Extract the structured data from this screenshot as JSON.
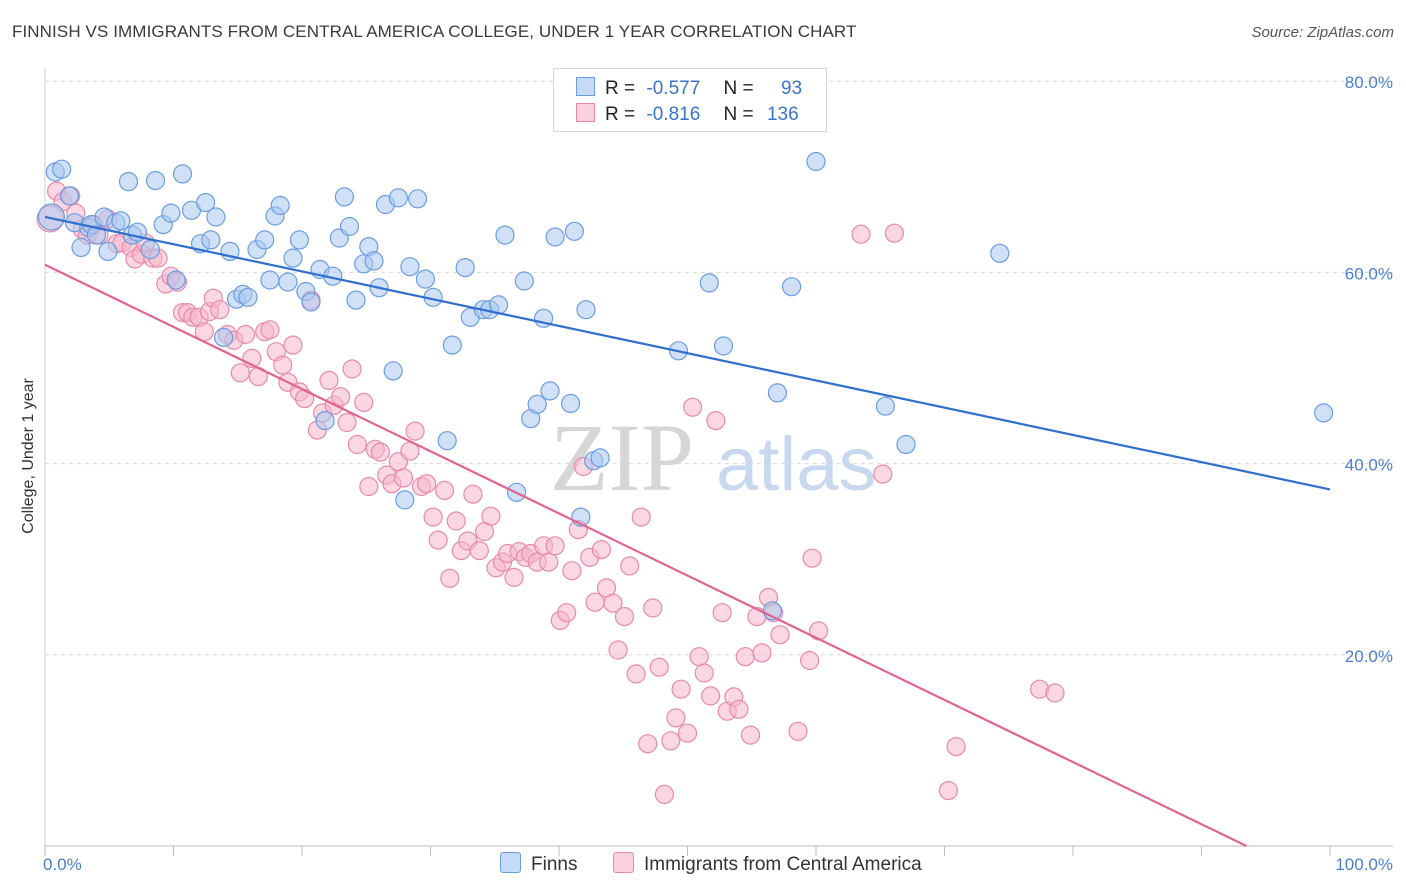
{
  "title": "FINNISH VS IMMIGRANTS FROM CENTRAL AMERICA COLLEGE, UNDER 1 YEAR CORRELATION CHART",
  "source": "Source: ZipAtlas.com",
  "watermark": {
    "zip": "ZIP",
    "atlas": "atlas"
  },
  "legend": {
    "rows": [
      {
        "r_label": "R =",
        "r_value": "-0.577",
        "n_label": "N =",
        "n_value": "93"
      },
      {
        "r_label": "R =",
        "r_value": "-0.816",
        "n_label": "N =",
        "n_value": "136"
      }
    ]
  },
  "bottom_legend": [
    "Finns",
    "Immigrants from Central America"
  ],
  "colors": {
    "blue_fill": "#a9c8f0",
    "blue_stroke": "#6a9de0",
    "blue_line": "#2f6fcf",
    "pink_fill": "#f6b6cb",
    "pink_stroke": "#e88aa9",
    "pink_line": "#e0648f",
    "tick_label": "#4a7fd0",
    "grid": "#d9d9d9"
  },
  "chart_data": {
    "type": "scatter",
    "title": "FINNISH VS IMMIGRANTS FROM CENTRAL AMERICA COLLEGE, UNDER 1 YEAR CORRELATION CHART",
    "xlabel": "",
    "ylabel": "College, Under 1 year",
    "xlim": [
      0,
      100
    ],
    "ylim": [
      0,
      82
    ],
    "x_tick_labels": [
      "0.0%",
      "100.0%"
    ],
    "y_ticks": [
      20,
      40,
      60,
      80
    ],
    "y_tick_labels": [
      "20.0%",
      "40.0%",
      "60.0%",
      "80.0%"
    ],
    "grid": true,
    "legend_position": "top-center",
    "series": [
      {
        "name": "Finns",
        "r": -0.577,
        "n": 93,
        "trend": {
          "x": [
            0,
            100
          ],
          "y": [
            65.8,
            37.3
          ]
        },
        "points": [
          [
            0.5,
            65.8
          ],
          [
            0.8,
            70.5
          ],
          [
            1.3,
            70.8
          ],
          [
            1.9,
            68.0
          ],
          [
            2.3,
            65.2
          ],
          [
            2.8,
            62.6
          ],
          [
            3.4,
            64.7
          ],
          [
            3.6,
            65.0
          ],
          [
            4.0,
            63.9
          ],
          [
            4.6,
            65.8
          ],
          [
            4.9,
            62.2
          ],
          [
            5.5,
            65.2
          ],
          [
            5.9,
            65.4
          ],
          [
            6.5,
            69.5
          ],
          [
            6.8,
            63.9
          ],
          [
            7.2,
            64.2
          ],
          [
            8.2,
            62.4
          ],
          [
            8.6,
            69.6
          ],
          [
            9.2,
            65.0
          ],
          [
            9.8,
            66.2
          ],
          [
            10.2,
            59.2
          ],
          [
            10.7,
            70.3
          ],
          [
            11.4,
            66.5
          ],
          [
            12.1,
            63.0
          ],
          [
            12.5,
            67.3
          ],
          [
            12.9,
            63.4
          ],
          [
            13.3,
            65.8
          ],
          [
            13.9,
            53.2
          ],
          [
            14.4,
            62.2
          ],
          [
            14.9,
            57.2
          ],
          [
            15.4,
            57.7
          ],
          [
            15.8,
            57.4
          ],
          [
            16.5,
            62.4
          ],
          [
            17.1,
            63.4
          ],
          [
            17.5,
            59.2
          ],
          [
            17.9,
            65.9
          ],
          [
            18.3,
            67.0
          ],
          [
            18.9,
            59.0
          ],
          [
            19.3,
            61.5
          ],
          [
            19.8,
            63.4
          ],
          [
            20.3,
            58.0
          ],
          [
            20.7,
            56.9
          ],
          [
            21.4,
            60.3
          ],
          [
            21.8,
            44.5
          ],
          [
            22.4,
            59.6
          ],
          [
            22.9,
            63.6
          ],
          [
            23.3,
            67.9
          ],
          [
            23.7,
            64.8
          ],
          [
            24.2,
            57.1
          ],
          [
            24.8,
            60.9
          ],
          [
            25.2,
            62.7
          ],
          [
            25.6,
            61.2
          ],
          [
            26.0,
            58.4
          ],
          [
            26.5,
            67.1
          ],
          [
            27.1,
            49.7
          ],
          [
            27.5,
            67.8
          ],
          [
            28.0,
            36.2
          ],
          [
            28.4,
            60.6
          ],
          [
            29.0,
            67.7
          ],
          [
            29.6,
            59.3
          ],
          [
            30.2,
            57.4
          ],
          [
            31.3,
            42.4
          ],
          [
            31.7,
            52.4
          ],
          [
            32.7,
            60.5
          ],
          [
            33.1,
            55.3
          ],
          [
            34.1,
            56.1
          ],
          [
            34.6,
            56.1
          ],
          [
            35.3,
            56.6
          ],
          [
            35.8,
            63.9
          ],
          [
            36.7,
            37.0
          ],
          [
            37.3,
            59.1
          ],
          [
            37.8,
            44.7
          ],
          [
            38.3,
            46.2
          ],
          [
            38.8,
            55.2
          ],
          [
            39.3,
            47.6
          ],
          [
            39.7,
            63.7
          ],
          [
            40.9,
            46.3
          ],
          [
            41.2,
            64.3
          ],
          [
            41.7,
            34.4
          ],
          [
            42.1,
            56.1
          ],
          [
            42.7,
            40.3
          ],
          [
            43.2,
            40.6
          ],
          [
            49.3,
            51.8
          ],
          [
            51.7,
            58.9
          ],
          [
            52.8,
            52.3
          ],
          [
            56.6,
            24.6
          ],
          [
            57.0,
            47.4
          ],
          [
            58.1,
            58.5
          ],
          [
            60.0,
            71.6
          ],
          [
            65.4,
            46.0
          ],
          [
            67.0,
            42.0
          ],
          [
            74.3,
            62.0
          ],
          [
            99.5,
            45.3
          ]
        ]
      },
      {
        "name": "Immigrants from Central America",
        "r": -0.816,
        "n": 136,
        "trend": {
          "x": [
            0,
            93.5
          ],
          "y": [
            60.8,
            0.0
          ]
        },
        "points": [
          [
            0.4,
            65.6
          ],
          [
            0.9,
            68.5
          ],
          [
            1.4,
            67.4
          ],
          [
            2.0,
            68.0
          ],
          [
            2.4,
            66.2
          ],
          [
            2.9,
            64.5
          ],
          [
            3.3,
            63.9
          ],
          [
            3.8,
            65.0
          ],
          [
            4.2,
            63.9
          ],
          [
            4.9,
            65.6
          ],
          [
            5.6,
            63.0
          ],
          [
            6.0,
            63.1
          ],
          [
            6.7,
            62.6
          ],
          [
            7.0,
            61.4
          ],
          [
            7.5,
            61.9
          ],
          [
            7.8,
            63.1
          ],
          [
            8.4,
            61.5
          ],
          [
            8.8,
            61.5
          ],
          [
            9.4,
            58.8
          ],
          [
            9.8,
            59.6
          ],
          [
            10.3,
            59.0
          ],
          [
            10.7,
            55.8
          ],
          [
            11.1,
            55.8
          ],
          [
            11.5,
            55.3
          ],
          [
            12.0,
            55.3
          ],
          [
            12.4,
            53.8
          ],
          [
            12.8,
            55.9
          ],
          [
            13.1,
            57.3
          ],
          [
            13.6,
            56.1
          ],
          [
            14.2,
            53.5
          ],
          [
            14.7,
            52.9
          ],
          [
            15.2,
            49.5
          ],
          [
            15.6,
            53.5
          ],
          [
            16.1,
            51.0
          ],
          [
            16.6,
            49.1
          ],
          [
            17.1,
            53.8
          ],
          [
            17.5,
            54.0
          ],
          [
            18.0,
            51.7
          ],
          [
            18.5,
            50.3
          ],
          [
            18.9,
            48.5
          ],
          [
            19.3,
            52.4
          ],
          [
            19.8,
            47.5
          ],
          [
            20.2,
            46.8
          ],
          [
            20.7,
            57.1
          ],
          [
            21.2,
            43.5
          ],
          [
            21.6,
            45.3
          ],
          [
            22.1,
            48.7
          ],
          [
            22.5,
            46.1
          ],
          [
            23.0,
            47.0
          ],
          [
            23.5,
            44.3
          ],
          [
            23.9,
            49.9
          ],
          [
            24.3,
            42.0
          ],
          [
            24.8,
            46.4
          ],
          [
            25.2,
            37.6
          ],
          [
            25.7,
            41.5
          ],
          [
            26.1,
            41.2
          ],
          [
            26.6,
            38.8
          ],
          [
            27.0,
            37.9
          ],
          [
            27.5,
            40.2
          ],
          [
            27.9,
            38.5
          ],
          [
            28.4,
            41.3
          ],
          [
            28.8,
            43.4
          ],
          [
            29.3,
            37.6
          ],
          [
            29.7,
            37.9
          ],
          [
            30.2,
            34.4
          ],
          [
            30.6,
            32.0
          ],
          [
            31.1,
            37.2
          ],
          [
            31.5,
            28.0
          ],
          [
            32.0,
            34.0
          ],
          [
            32.4,
            30.9
          ],
          [
            32.9,
            31.9
          ],
          [
            33.3,
            36.8
          ],
          [
            33.8,
            30.9
          ],
          [
            34.2,
            32.9
          ],
          [
            34.7,
            34.5
          ],
          [
            35.1,
            29.1
          ],
          [
            35.6,
            29.7
          ],
          [
            36.0,
            30.6
          ],
          [
            36.5,
            28.1
          ],
          [
            36.9,
            30.8
          ],
          [
            37.4,
            30.2
          ],
          [
            37.8,
            30.6
          ],
          [
            38.3,
            29.7
          ],
          [
            38.8,
            31.4
          ],
          [
            39.2,
            29.7
          ],
          [
            39.7,
            31.4
          ],
          [
            40.1,
            23.6
          ],
          [
            40.6,
            24.4
          ],
          [
            41.0,
            28.8
          ],
          [
            41.5,
            33.1
          ],
          [
            41.9,
            39.7
          ],
          [
            42.4,
            30.2
          ],
          [
            42.8,
            25.5
          ],
          [
            43.3,
            31.0
          ],
          [
            43.7,
            27.0
          ],
          [
            44.2,
            25.4
          ],
          [
            44.6,
            20.5
          ],
          [
            45.1,
            24.0
          ],
          [
            45.5,
            29.3
          ],
          [
            46.0,
            18.0
          ],
          [
            46.4,
            34.4
          ],
          [
            46.9,
            10.7
          ],
          [
            47.3,
            24.9
          ],
          [
            47.8,
            18.7
          ],
          [
            48.2,
            5.4
          ],
          [
            48.7,
            11.0
          ],
          [
            49.1,
            13.4
          ],
          [
            49.5,
            16.4
          ],
          [
            50.0,
            11.8
          ],
          [
            50.4,
            45.9
          ],
          [
            50.9,
            19.8
          ],
          [
            51.3,
            18.1
          ],
          [
            51.8,
            15.7
          ],
          [
            52.2,
            44.5
          ],
          [
            52.7,
            24.4
          ],
          [
            53.1,
            14.1
          ],
          [
            53.6,
            15.6
          ],
          [
            54.0,
            14.3
          ],
          [
            54.5,
            19.8
          ],
          [
            54.9,
            11.6
          ],
          [
            55.4,
            24.0
          ],
          [
            55.8,
            20.2
          ],
          [
            56.3,
            26.0
          ],
          [
            56.7,
            24.4
          ],
          [
            57.2,
            22.1
          ],
          [
            58.6,
            12.0
          ],
          [
            59.5,
            19.4
          ],
          [
            59.7,
            30.1
          ],
          [
            60.2,
            22.5
          ],
          [
            63.5,
            64.0
          ],
          [
            65.2,
            38.9
          ],
          [
            66.1,
            64.1
          ],
          [
            70.3,
            5.8
          ],
          [
            70.9,
            10.4
          ],
          [
            77.4,
            16.4
          ],
          [
            78.6,
            16.0
          ]
        ]
      }
    ]
  }
}
